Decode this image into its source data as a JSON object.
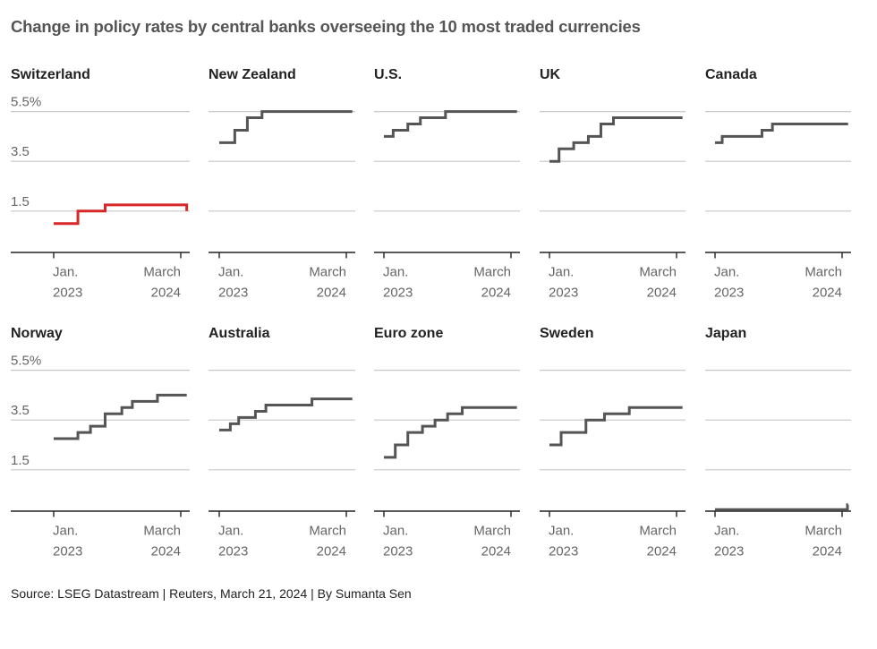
{
  "chart_data": {
    "type": "line",
    "subtype": "small-multiples-step",
    "title": "Change in policy rates by central banks overseeing the 10 most traded currencies",
    "source": "Source: LSEG Datastream | Reuters, March 21, 2024 | By Sumanta Sen",
    "ylim": [
      0,
      5.5
    ],
    "y_ticks": [
      1.5,
      3.5,
      5.5
    ],
    "y_tick_labels": [
      "1.5",
      "3.5",
      "5.5%"
    ],
    "x_range": [
      "2023-01-01",
      "2024-03-21"
    ],
    "x_ticks": [
      {
        "date": "2023-01-01",
        "line1": "Jan.",
        "line2": "2023"
      },
      {
        "date": "2024-03-01",
        "line1": "March",
        "line2": "2024"
      }
    ],
    "grid": true,
    "highlight_color": "#d62728",
    "default_color": "#555555",
    "panels": [
      {
        "name": "Switzerland",
        "highlight": true,
        "show_y_labels": true,
        "steps": [
          [
            "2023-01-01",
            1.0
          ],
          [
            "2023-03-23",
            1.5
          ],
          [
            "2023-06-22",
            1.75
          ],
          [
            "2024-03-21",
            1.5
          ]
        ]
      },
      {
        "name": "New Zealand",
        "highlight": false,
        "show_y_labels": false,
        "steps": [
          [
            "2023-01-01",
            4.25
          ],
          [
            "2023-02-22",
            4.75
          ],
          [
            "2023-04-05",
            5.25
          ],
          [
            "2023-05-24",
            5.5
          ]
        ]
      },
      {
        "name": "U.S.",
        "highlight": false,
        "show_y_labels": false,
        "steps": [
          [
            "2023-01-01",
            4.5
          ],
          [
            "2023-02-01",
            4.75
          ],
          [
            "2023-03-22",
            5.0
          ],
          [
            "2023-05-03",
            5.25
          ],
          [
            "2023-07-26",
            5.5
          ]
        ]
      },
      {
        "name": "UK",
        "highlight": false,
        "show_y_labels": false,
        "steps": [
          [
            "2023-01-01",
            3.5
          ],
          [
            "2023-02-02",
            4.0
          ],
          [
            "2023-03-23",
            4.25
          ],
          [
            "2023-05-11",
            4.5
          ],
          [
            "2023-06-22",
            5.0
          ],
          [
            "2023-08-03",
            5.25
          ]
        ]
      },
      {
        "name": "Canada",
        "highlight": false,
        "show_y_labels": false,
        "steps": [
          [
            "2023-01-01",
            4.25
          ],
          [
            "2023-01-25",
            4.5
          ],
          [
            "2023-06-07",
            4.75
          ],
          [
            "2023-07-12",
            5.0
          ]
        ]
      },
      {
        "name": "Norway",
        "highlight": false,
        "show_y_labels": true,
        "steps": [
          [
            "2023-01-01",
            2.75
          ],
          [
            "2023-03-23",
            3.0
          ],
          [
            "2023-05-04",
            3.25
          ],
          [
            "2023-06-22",
            3.75
          ],
          [
            "2023-08-17",
            4.0
          ],
          [
            "2023-09-21",
            4.25
          ],
          [
            "2023-12-14",
            4.5
          ]
        ]
      },
      {
        "name": "Australia",
        "highlight": false,
        "show_y_labels": false,
        "steps": [
          [
            "2023-01-01",
            3.1
          ],
          [
            "2023-02-07",
            3.35
          ],
          [
            "2023-03-07",
            3.6
          ],
          [
            "2023-05-02",
            3.85
          ],
          [
            "2023-06-06",
            4.1
          ],
          [
            "2023-11-07",
            4.35
          ]
        ]
      },
      {
        "name": "Euro zone",
        "highlight": false,
        "show_y_labels": false,
        "steps": [
          [
            "2023-01-01",
            2.0
          ],
          [
            "2023-02-08",
            2.5
          ],
          [
            "2023-03-22",
            3.0
          ],
          [
            "2023-05-10",
            3.25
          ],
          [
            "2023-06-21",
            3.5
          ],
          [
            "2023-08-02",
            3.75
          ],
          [
            "2023-09-20",
            4.0
          ]
        ]
      },
      {
        "name": "Sweden",
        "highlight": false,
        "show_y_labels": false,
        "steps": [
          [
            "2023-01-01",
            2.5
          ],
          [
            "2023-02-09",
            3.0
          ],
          [
            "2023-05-03",
            3.5
          ],
          [
            "2023-07-04",
            3.75
          ],
          [
            "2023-09-25",
            4.0
          ]
        ]
      },
      {
        "name": "Japan",
        "highlight": false,
        "show_y_labels": false,
        "steps": [
          [
            "2023-01-01",
            -0.1
          ],
          [
            "2024-03-19",
            0.1
          ]
        ]
      }
    ]
  }
}
